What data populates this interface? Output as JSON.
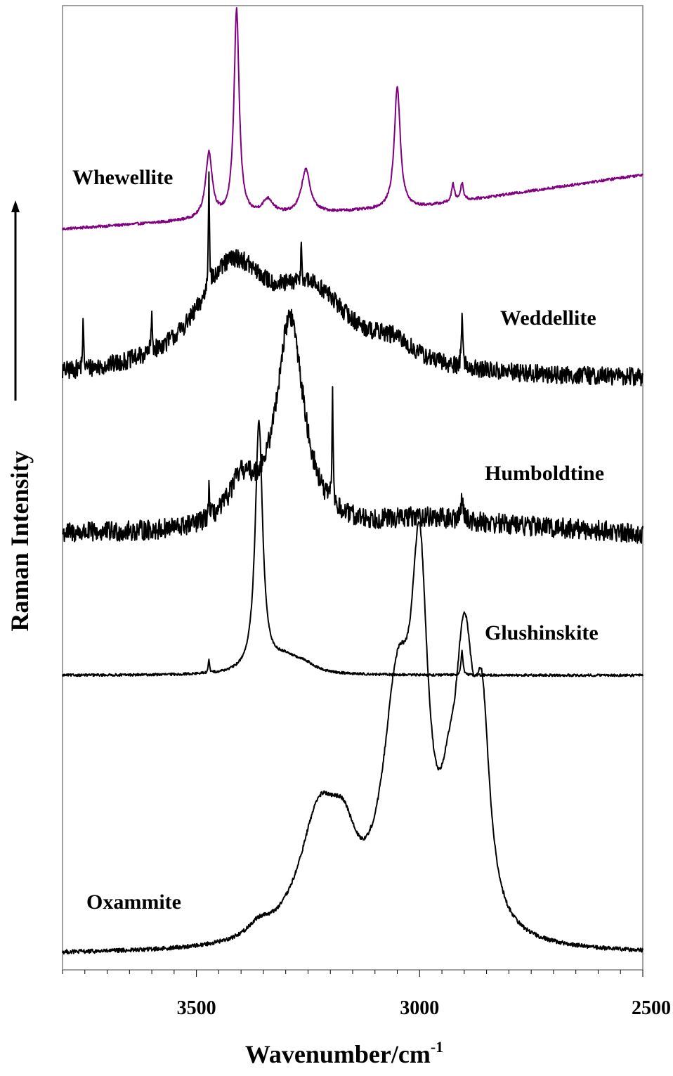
{
  "chart_data": {
    "type": "line",
    "xlabel": "Wavenumber/cm",
    "xlabel_superscript": "-1",
    "ylabel": "Raman Intensity",
    "xlim": [
      3800,
      2500
    ],
    "x_reversed": true,
    "xticks": [
      3500,
      3000,
      2500
    ],
    "grid": false,
    "yaxis_arrow": true,
    "series": [
      {
        "name": "Whewellite",
        "color": "#800080",
        "baseline": [
          [
            3800,
            0.0
          ],
          [
            3500,
            0.04
          ],
          [
            3000,
            0.1
          ],
          [
            2500,
            0.25
          ]
        ],
        "peaks": [
          {
            "x": 3472,
            "height": 0.3,
            "width": 9
          },
          {
            "x": 3410,
            "height": 0.95,
            "width": 7
          },
          {
            "x": 3340,
            "height": 0.07,
            "width": 15
          },
          {
            "x": 3255,
            "height": 0.2,
            "width": 12
          },
          {
            "x": 3050,
            "height": 0.56,
            "width": 8
          },
          {
            "x": 2925,
            "height": 0.08,
            "width": 4
          },
          {
            "x": 2905,
            "height": 0.08,
            "width": 4
          }
        ],
        "noise": 0.006
      },
      {
        "name": "Weddellite",
        "color": "#000000",
        "baseline": [
          [
            3800,
            0.0
          ],
          [
            2500,
            0.0
          ]
        ],
        "peaks": [
          {
            "x": 3420,
            "height": 0.55,
            "width": 95
          },
          {
            "x": 3240,
            "height": 0.4,
            "width": 110
          },
          {
            "x": 3060,
            "height": 0.1,
            "width": 60
          },
          {
            "x": 3754,
            "height": 0.24,
            "width": 1.5
          },
          {
            "x": 3600,
            "height": 0.2,
            "width": 1.5
          },
          {
            "x": 3472,
            "height": 0.65,
            "width": 1.5
          },
          {
            "x": 3265,
            "height": 0.2,
            "width": 1.5
          },
          {
            "x": 2905,
            "height": 0.28,
            "width": 2
          }
        ],
        "noise": 0.05
      },
      {
        "name": "Humboldtine",
        "color": "#000000",
        "baseline": [
          [
            3800,
            0.0
          ],
          [
            3200,
            0.0
          ],
          [
            3000,
            0.07
          ],
          [
            2500,
            0.0
          ]
        ],
        "peaks": [
          {
            "x": 3290,
            "height": 1.05,
            "width": 38
          },
          {
            "x": 3400,
            "height": 0.2,
            "width": 35
          },
          {
            "x": 3195,
            "height": 0.55,
            "width": 1.5
          },
          {
            "x": 3472,
            "height": 0.15,
            "width": 1.5
          },
          {
            "x": 2905,
            "height": 0.1,
            "width": 4
          }
        ],
        "noise": 0.05
      },
      {
        "name": "Glushinskite",
        "color": "#000000",
        "baseline": [
          [
            3800,
            0.0
          ],
          [
            2500,
            0.0
          ]
        ],
        "peaks": [
          {
            "x": 3360,
            "height": 1.25,
            "width": 10
          },
          {
            "x": 3300,
            "height": 0.08,
            "width": 40
          },
          {
            "x": 3255,
            "height": 0.03,
            "width": 25
          },
          {
            "x": 3472,
            "height": 0.07,
            "width": 1.5
          },
          {
            "x": 2905,
            "height": 0.12,
            "width": 2.5
          }
        ],
        "noise": 0.006
      },
      {
        "name": "Oxammite",
        "color": "#000000",
        "baseline": [
          [
            3800,
            0.0
          ],
          [
            2500,
            0.0
          ]
        ],
        "peaks": [
          {
            "x": 3225,
            "height": 0.3,
            "width": 55
          },
          {
            "x": 3170,
            "height": 0.15,
            "width": 35
          },
          {
            "x": 3050,
            "height": 0.55,
            "width": 40
          },
          {
            "x": 3000,
            "height": 0.75,
            "width": 22
          },
          {
            "x": 2935,
            "height": 0.15,
            "width": 22
          },
          {
            "x": 2900,
            "height": 0.62,
            "width": 25
          },
          {
            "x": 2860,
            "height": 0.45,
            "width": 20
          },
          {
            "x": 3360,
            "height": 0.03,
            "width": 30
          }
        ],
        "noise": 0.005
      }
    ]
  }
}
